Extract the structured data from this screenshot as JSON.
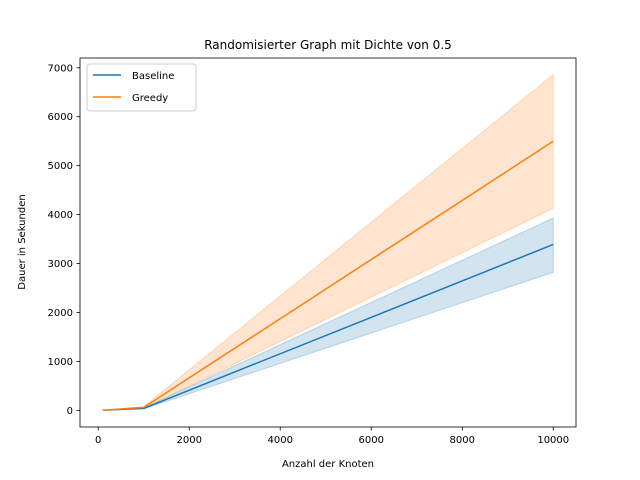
{
  "chart_data": {
    "type": "line",
    "title": "Randomisierter Graph mit Dichte von 0.5",
    "xlabel": "Anzahl der Knoten",
    "ylabel": "Dauer in Sekunden",
    "xlim": [
      -400,
      10500
    ],
    "ylim": [
      -340,
      7200
    ],
    "xticks": [
      0,
      2000,
      4000,
      6000,
      8000,
      10000
    ],
    "yticks": [
      0,
      1000,
      2000,
      3000,
      4000,
      5000,
      6000,
      7000
    ],
    "grid": false,
    "legend_position": "top-left",
    "series": [
      {
        "name": "Baseline",
        "color": "#1f77b4",
        "x": [
          100,
          1000,
          10000
        ],
        "y": [
          2,
          40,
          3390
        ],
        "ci_lower": [
          1,
          30,
          2820
        ],
        "ci_upper": [
          3,
          50,
          3930
        ]
      },
      {
        "name": "Greedy",
        "color": "#ff7f0e",
        "x": [
          100,
          1000,
          10000
        ],
        "y": [
          3,
          60,
          5500
        ],
        "ci_lower": [
          2,
          45,
          4130
        ],
        "ci_upper": [
          4,
          75,
          6860
        ]
      }
    ]
  }
}
